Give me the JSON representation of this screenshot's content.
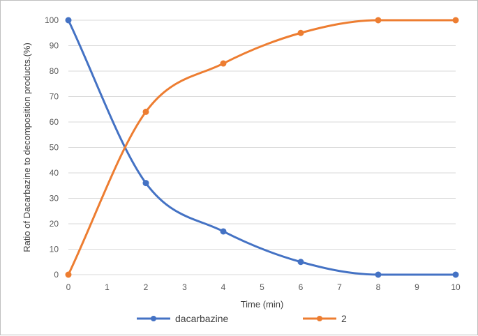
{
  "chart_data": {
    "type": "line",
    "title": "",
    "xlabel": "Time (min)",
    "ylabel": "Ratio of Dacarbazine to decomposition products.(%)",
    "xlim": [
      0,
      10
    ],
    "ylim": [
      0,
      100
    ],
    "xticks": [
      0,
      1,
      2,
      3,
      4,
      5,
      6,
      7,
      8,
      9,
      10
    ],
    "yticks": [
      0,
      10,
      20,
      30,
      40,
      50,
      60,
      70,
      80,
      90,
      100
    ],
    "grid": "horizontal",
    "smoothed": true,
    "legend_position": "bottom",
    "series": [
      {
        "name": "dacarbazine",
        "color": "#4472c4",
        "marker": "circle",
        "x": [
          0,
          2,
          4,
          6,
          8,
          10
        ],
        "y": [
          100,
          36,
          17,
          5,
          0,
          0
        ]
      },
      {
        "name": "2",
        "color": "#ed7d31",
        "marker": "circle",
        "x": [
          0,
          2,
          4,
          6,
          8,
          10
        ],
        "y": [
          0,
          64,
          83,
          95,
          100,
          100
        ]
      }
    ]
  }
}
